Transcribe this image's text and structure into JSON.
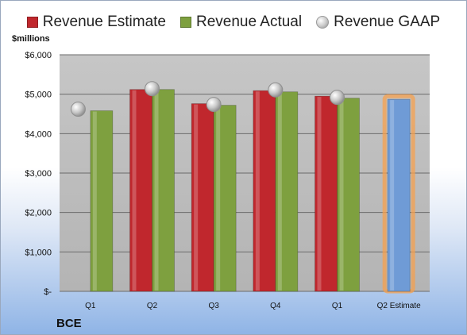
{
  "legend": {
    "estimate": "Revenue Estimate",
    "actual": "Revenue Actual",
    "gaap": "Revenue GAAP"
  },
  "unit_label": "$millions",
  "company": "BCE",
  "colors": {
    "estimate": "#c0272d",
    "actual": "#7ea03f",
    "gaap": "#c0c0c0",
    "forecast": "#6f9bd6",
    "forecast_glow": "#f6a04d",
    "plot_bg": "#c4c4c4",
    "grid": "#6b6b6b"
  },
  "chart_data": {
    "type": "bar",
    "categories": [
      "Q1",
      "Q2",
      "Q3",
      "Q4",
      "Q1",
      "Q2 Estimate"
    ],
    "series": [
      {
        "name": "Revenue Estimate",
        "values": [
          null,
          5120,
          4760,
          5090,
          4950,
          4870
        ]
      },
      {
        "name": "Revenue Actual",
        "values": [
          4580,
          5120,
          4720,
          5060,
          4900,
          null
        ]
      },
      {
        "name": "Revenue GAAP",
        "values": [
          4620,
          5140,
          4740,
          5110,
          4920,
          null
        ]
      }
    ],
    "ylim": [
      0,
      6000
    ],
    "yticks": [
      0,
      1000,
      2000,
      3000,
      4000,
      5000,
      6000
    ],
    "ytick_labels": [
      "$-",
      "$1,000",
      "$2,000",
      "$3,000",
      "$4,000",
      "$5,000",
      "$6,000"
    ],
    "grid": true,
    "legend_position": "top"
  }
}
